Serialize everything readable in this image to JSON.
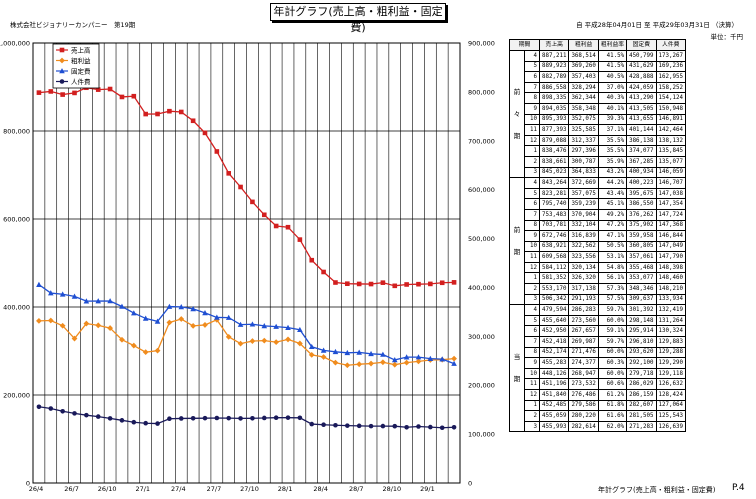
{
  "header": {
    "title": "年計グラフ(売上高・粗利益・固定費)",
    "company": "株式会社ビジョナリーカンパニー　第19期",
    "period": "自 平成28年04月01日 至 平成29年03月31日 （決算）",
    "unit": "単位：千円"
  },
  "footer": {
    "title": "年計グラフ(売上高・粗利益・固定費)",
    "page": "P.4"
  },
  "table": {
    "headers": [
      "期間",
      "売上高",
      "粗利益",
      "粗利益率",
      "固定費",
      "人件費"
    ],
    "sections": [
      {
        "label": [
          "前",
          "々",
          "期"
        ],
        "rows": [
          [
            "4",
            "887,211",
            "368,514",
            "41.5%",
            "450,799",
            "173,267"
          ],
          [
            "5",
            "889,923",
            "369,260",
            "41.5%",
            "431,629",
            "169,236"
          ],
          [
            "6",
            "882,789",
            "357,403",
            "40.5%",
            "428,888",
            "162,955"
          ],
          [
            "7",
            "886,558",
            "328,294",
            "37.0%",
            "424,059",
            "158,252"
          ],
          [
            "8",
            "898,335",
            "362,344",
            "40.3%",
            "413,290",
            "154,124"
          ],
          [
            "9",
            "894,035",
            "358,348",
            "40.1%",
            "413,505",
            "150,948"
          ],
          [
            "10",
            "895,393",
            "352,075",
            "39.3%",
            "413,655",
            "146,891"
          ],
          [
            "11",
            "877,393",
            "325,585",
            "37.1%",
            "401,144",
            "142,464"
          ],
          [
            "12",
            "879,088",
            "312,337",
            "35.5%",
            "386,138",
            "138,132"
          ],
          [
            "1",
            "838,476",
            "297,396",
            "35.5%",
            "374,077",
            "135,845"
          ],
          [
            "2",
            "838,661",
            "300,787",
            "35.9%",
            "367,285",
            "135,077"
          ],
          [
            "3",
            "845,023",
            "364,833",
            "43.2%",
            "400,934",
            "146,059"
          ]
        ]
      },
      {
        "label": [
          "前",
          "期"
        ],
        "rows": [
          [
            "4",
            "843,264",
            "372,669",
            "44.2%",
            "400,223",
            "146,707"
          ],
          [
            "5",
            "823,281",
            "357,075",
            "43.4%",
            "395,675",
            "147,038"
          ],
          [
            "6",
            "795,740",
            "359,239",
            "45.1%",
            "386,550",
            "147,354"
          ],
          [
            "7",
            "753,483",
            "370,904",
            "49.2%",
            "376,262",
            "147,724"
          ],
          [
            "8",
            "703,781",
            "332,104",
            "47.2%",
            "375,902",
            "147,368"
          ],
          [
            "9",
            "672,746",
            "316,839",
            "47.1%",
            "359,958",
            "146,844"
          ],
          [
            "10",
            "638,921",
            "322,562",
            "50.5%",
            "360,805",
            "147,049"
          ],
          [
            "11",
            "609,568",
            "323,556",
            "53.1%",
            "357,061",
            "147,790"
          ],
          [
            "12",
            "584,112",
            "320,134",
            "54.8%",
            "355,468",
            "148,398"
          ],
          [
            "1",
            "581,352",
            "326,320",
            "56.1%",
            "353,077",
            "148,460"
          ],
          [
            "2",
            "553,170",
            "317,138",
            "57.3%",
            "348,346",
            "148,210"
          ],
          [
            "3",
            "506,342",
            "291,193",
            "57.5%",
            "309,637",
            "133,934"
          ]
        ]
      },
      {
        "label": [
          "当",
          "期"
        ],
        "rows": [
          [
            "4",
            "479,594",
            "286,283",
            "59.7%",
            "301,392",
            "132,419"
          ],
          [
            "5",
            "455,640",
            "273,560",
            "60.0%",
            "298,148",
            "131,264"
          ],
          [
            "6",
            "452,950",
            "267,657",
            "59.1%",
            "295,914",
            "130,324"
          ],
          [
            "7",
            "452,418",
            "269,987",
            "59.7%",
            "296,810",
            "129,883"
          ],
          [
            "8",
            "452,174",
            "271,476",
            "60.0%",
            "293,620",
            "129,288"
          ],
          [
            "9",
            "455,283",
            "274,377",
            "60.3%",
            "292,100",
            "129,290"
          ],
          [
            "10",
            "448,126",
            "268,947",
            "60.0%",
            "279,718",
            "129,118"
          ],
          [
            "11",
            "451,196",
            "273,532",
            "60.6%",
            "286,029",
            "126,632"
          ],
          [
            "12",
            "451,840",
            "276,486",
            "61.2%",
            "286,159",
            "128,424"
          ],
          [
            "1",
            "452,485",
            "279,586",
            "61.8%",
            "282,607",
            "127,064"
          ],
          [
            "2",
            "455,059",
            "280,220",
            "61.6%",
            "281,505",
            "125,543"
          ],
          [
            "3",
            "455,993",
            "282,614",
            "62.0%",
            "271,283",
            "126,639"
          ]
        ]
      }
    ]
  },
  "chart_data": {
    "type": "line",
    "x": [
      "26/4",
      "26/5",
      "26/6",
      "26/7",
      "26/8",
      "26/9",
      "26/10",
      "26/11",
      "26/12",
      "27/1",
      "27/2",
      "27/3",
      "27/4",
      "27/5",
      "27/6",
      "27/7",
      "27/8",
      "27/9",
      "27/10",
      "27/11",
      "27/12",
      "28/1",
      "28/2",
      "28/3",
      "28/4",
      "28/5",
      "28/6",
      "28/7",
      "28/8",
      "28/9",
      "28/10",
      "28/11",
      "28/12",
      "29/1",
      "29/2",
      "29/3"
    ],
    "xticks": [
      "26/4",
      "26/7",
      "26/10",
      "27/1",
      "27/4",
      "27/7",
      "27/10",
      "28/1",
      "28/4",
      "28/7",
      "28/10",
      "29/1"
    ],
    "left_axis": {
      "ylim": [
        0,
        1000000
      ],
      "ticks": [
        "0",
        "200,000",
        "400,000",
        "600,000",
        "800,000",
        "1,000,000"
      ]
    },
    "right_axis": {
      "ylim": [
        0,
        900000
      ],
      "ticks": [
        "0",
        "100,000",
        "200,000",
        "300,000",
        "400,000",
        "500,000",
        "600,000",
        "700,000",
        "800,000",
        "900,000"
      ]
    },
    "series": [
      {
        "name": "売上高",
        "color": "#d21f1f",
        "marker": "square",
        "values": [
          887211,
          889923,
          882789,
          886558,
          898335,
          894035,
          895393,
          877393,
          879088,
          838476,
          838661,
          845023,
          843264,
          823281,
          795740,
          753483,
          703781,
          672746,
          638921,
          609568,
          584112,
          581352,
          553170,
          506342,
          479594,
          455640,
          452950,
          452418,
          452174,
          455283,
          448126,
          451196,
          451840,
          452485,
          455059,
          455993
        ]
      },
      {
        "name": "粗利益",
        "color": "#f08c1e",
        "marker": "diamond",
        "values": [
          368514,
          369260,
          357403,
          328294,
          362344,
          358348,
          352075,
          325585,
          312337,
          297396,
          300787,
          364833,
          372669,
          357075,
          359239,
          370904,
          332104,
          316839,
          322562,
          323556,
          320134,
          326320,
          317138,
          291193,
          286283,
          273560,
          267657,
          269987,
          271476,
          274377,
          268947,
          273532,
          276486,
          279586,
          280220,
          282614
        ]
      },
      {
        "name": "固定費",
        "color": "#1f4fd2",
        "marker": "triangle",
        "values": [
          450799,
          431629,
          428888,
          424059,
          413290,
          413505,
          413655,
          401144,
          386138,
          374077,
          367285,
          400934,
          400223,
          395675,
          386550,
          376262,
          375902,
          359958,
          360805,
          357061,
          355468,
          353077,
          348346,
          309637,
          301392,
          298148,
          295914,
          296810,
          293620,
          292100,
          279718,
          286029,
          286159,
          282607,
          281505,
          271283
        ]
      },
      {
        "name": "人件費",
        "color": "#1a1a5a",
        "marker": "circle",
        "values": [
          173267,
          169236,
          162955,
          158252,
          154124,
          150948,
          146891,
          142464,
          138132,
          135845,
          135077,
          146059,
          146707,
          147038,
          147354,
          147724,
          147368,
          146844,
          147049,
          147790,
          148398,
          148460,
          148210,
          133934,
          132419,
          131264,
          130324,
          129883,
          129288,
          129290,
          129118,
          126632,
          128424,
          127064,
          125543,
          126639
        ]
      }
    ]
  }
}
